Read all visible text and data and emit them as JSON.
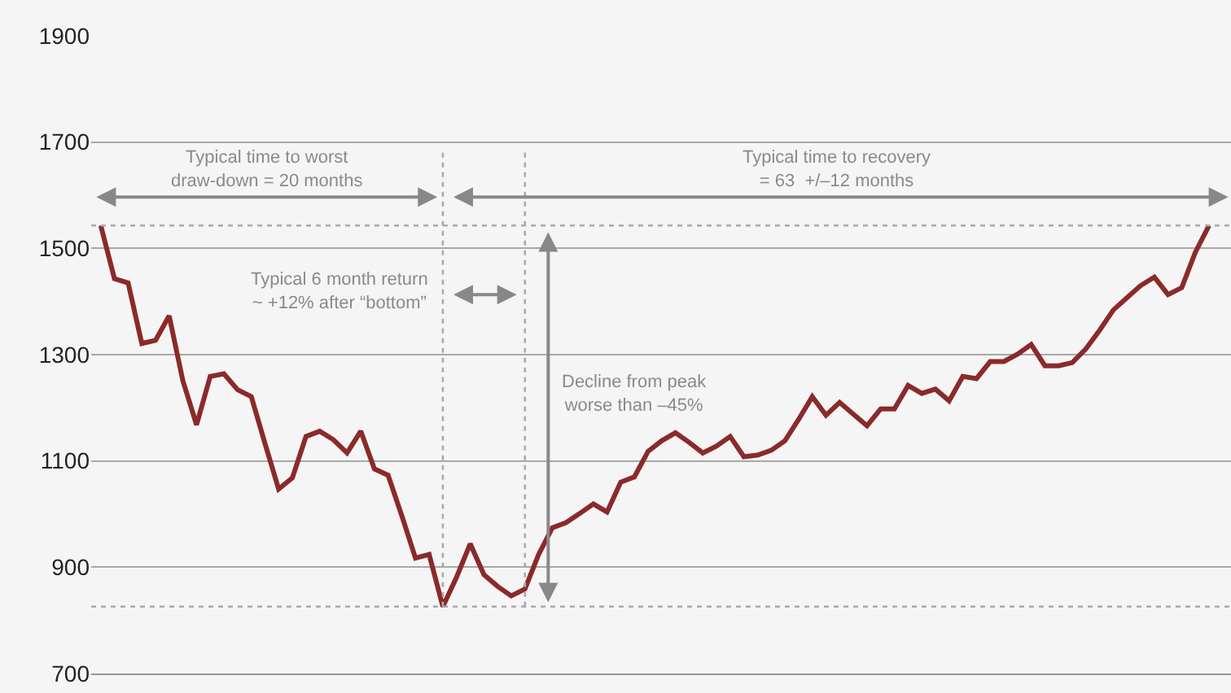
{
  "chart_data": {
    "type": "line",
    "categories": [
      null,
      null,
      null,
      null,
      null,
      null,
      null,
      null,
      null,
      null,
      null,
      null,
      null,
      null,
      null,
      null,
      null,
      null,
      null,
      null,
      null,
      null,
      null,
      null,
      null,
      null,
      null,
      null,
      null,
      null,
      null,
      null,
      null,
      null,
      null,
      null,
      null,
      null,
      null,
      null,
      null,
      null,
      null,
      null,
      null,
      null,
      null,
      null,
      null,
      null,
      null,
      null,
      null,
      null,
      null,
      null,
      null,
      null,
      null,
      null,
      null,
      null,
      null,
      null,
      null,
      null,
      null,
      null,
      null,
      null,
      null,
      null,
      null,
      null,
      null,
      null,
      null,
      null,
      null,
      null,
      null,
      null
    ],
    "series": [
      {
        "color": "#8b2a2a",
        "values": [
          1543,
          1443,
          1435,
          1321,
          1327,
          1373,
          1251,
          1168,
          1259,
          1264,
          1234,
          1221,
          1133,
          1047,
          1068,
          1146,
          1156,
          1140,
          1115,
          1156,
          1085,
          1073,
          997,
          917,
          924,
          826,
          881,
          944,
          886,
          864,
          846,
          859,
          924,
          974,
          984,
          1001,
          1019,
          1004,
          1060,
          1070,
          1118,
          1138,
          1153,
          1135,
          1115,
          1128,
          1146,
          1108,
          1111,
          1120,
          1138,
          1178,
          1221,
          1186,
          1210,
          1188,
          1166,
          1198,
          1198,
          1242,
          1227,
          1235,
          1213,
          1259,
          1255,
          1287,
          1287,
          1301,
          1319,
          1279,
          1279,
          1285,
          1311,
          1346,
          1384,
          1407,
          1430,
          1446,
          1413,
          1426,
          1493,
          1543
        ]
      }
    ],
    "ylim": [
      700,
      1900
    ],
    "yticks": [
      700,
      900,
      1100,
      1300,
      1500,
      1700,
      1900
    ],
    "tick_labels": "y",
    "grid": "y",
    "marker": "none",
    "line_style": "solid",
    "ref_lines": [
      {
        "axis": "y",
        "value": 1543,
        "color": "#aaaaaa",
        "line_style": "dotted"
      },
      {
        "axis": "y",
        "value": 826,
        "color": "#aaaaaa",
        "line_style": "dotted"
      }
    ],
    "annotations": [
      "Typical time to worst\ndraw-down = 20 months",
      "Typical time to recovery\n= 63  +/–12 months",
      "Typical 6 month return\n~ +12% after “bottom”",
      "Decline from peak\nworse than –45%"
    ]
  }
}
